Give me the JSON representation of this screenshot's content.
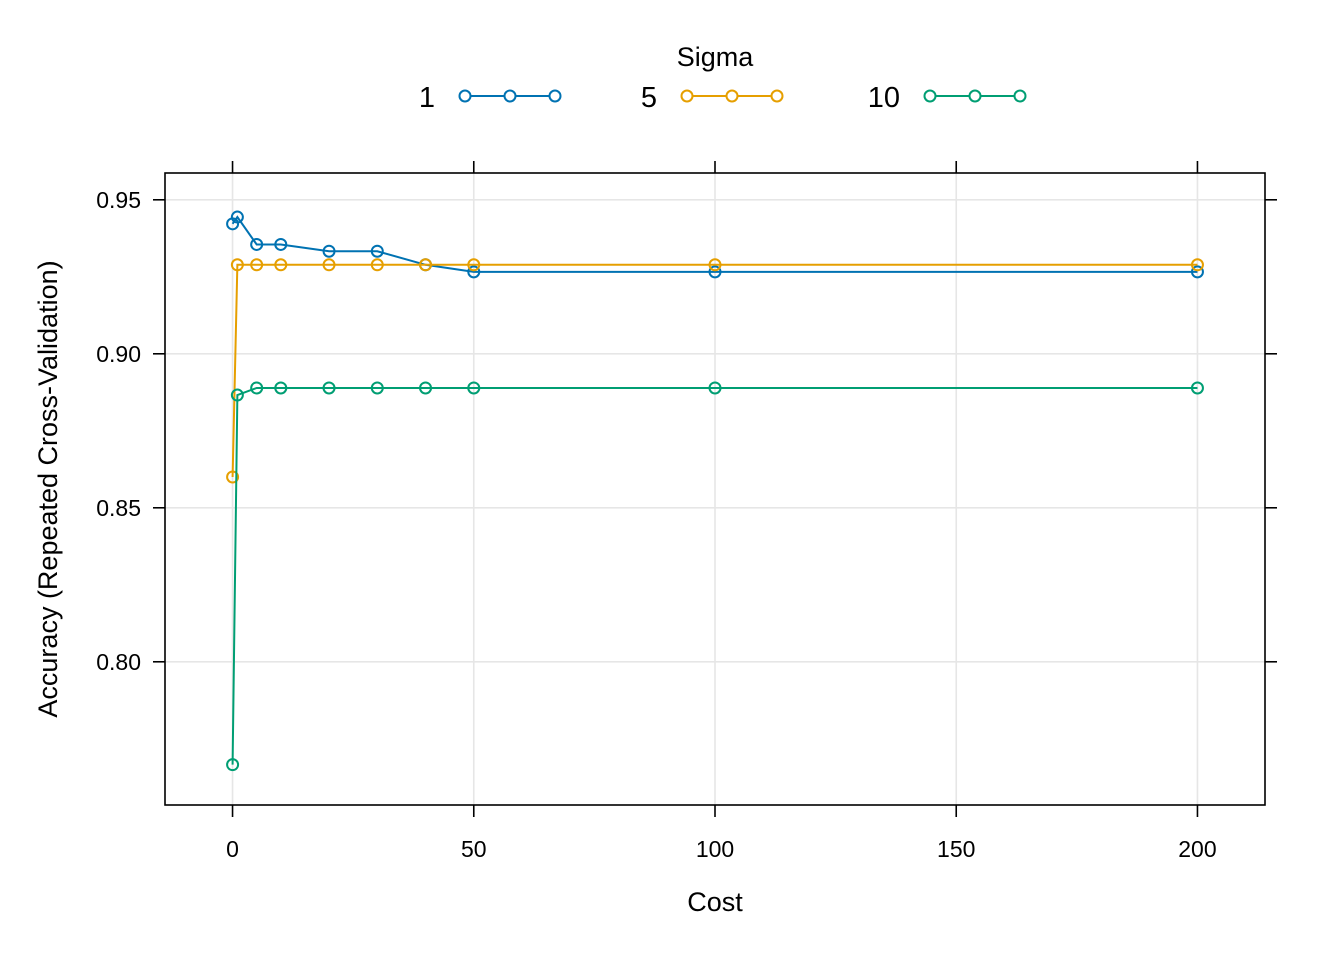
{
  "chart_data": {
    "type": "line",
    "title": "",
    "xlabel": "Cost",
    "ylabel": "Accuracy (Repeated Cross-Validation)",
    "xlim": [
      -14,
      214
    ],
    "ylim": [
      0.7535,
      0.9587
    ],
    "x_ticks": [
      0,
      50,
      100,
      150,
      200
    ],
    "x_tick_labels": [
      "0",
      "50",
      "100",
      "150",
      "200"
    ],
    "y_ticks": [
      0.8,
      0.85,
      0.9,
      0.95
    ],
    "y_tick_labels": [
      "0.80",
      "0.85",
      "0.90",
      "0.95"
    ],
    "grid": true,
    "legend": {
      "title": "Sigma",
      "position": "top",
      "entries": [
        "1",
        "5",
        "10"
      ]
    },
    "series": [
      {
        "name": "1",
        "color": "#0072B2",
        "x": [
          0.01,
          1,
          5,
          10,
          20,
          30,
          40,
          50,
          100,
          200
        ],
        "y": [
          0.9422,
          0.9444,
          0.9355,
          0.9355,
          0.9333,
          0.9333,
          0.9289,
          0.9266,
          0.9266,
          0.9266
        ]
      },
      {
        "name": "5",
        "color": "#E69F00",
        "x": [
          0.01,
          1,
          5,
          10,
          20,
          30,
          40,
          50,
          100,
          200
        ],
        "y": [
          0.86,
          0.9289,
          0.9289,
          0.9289,
          0.9289,
          0.9289,
          0.9289,
          0.9289,
          0.9289,
          0.9289
        ]
      },
      {
        "name": "10",
        "color": "#009E73",
        "x": [
          0.01,
          1,
          5,
          10,
          20,
          30,
          40,
          50,
          100,
          200
        ],
        "y": [
          0.7666,
          0.8866,
          0.8889,
          0.8889,
          0.8889,
          0.8889,
          0.8889,
          0.8889,
          0.8889,
          0.8889
        ]
      }
    ]
  }
}
